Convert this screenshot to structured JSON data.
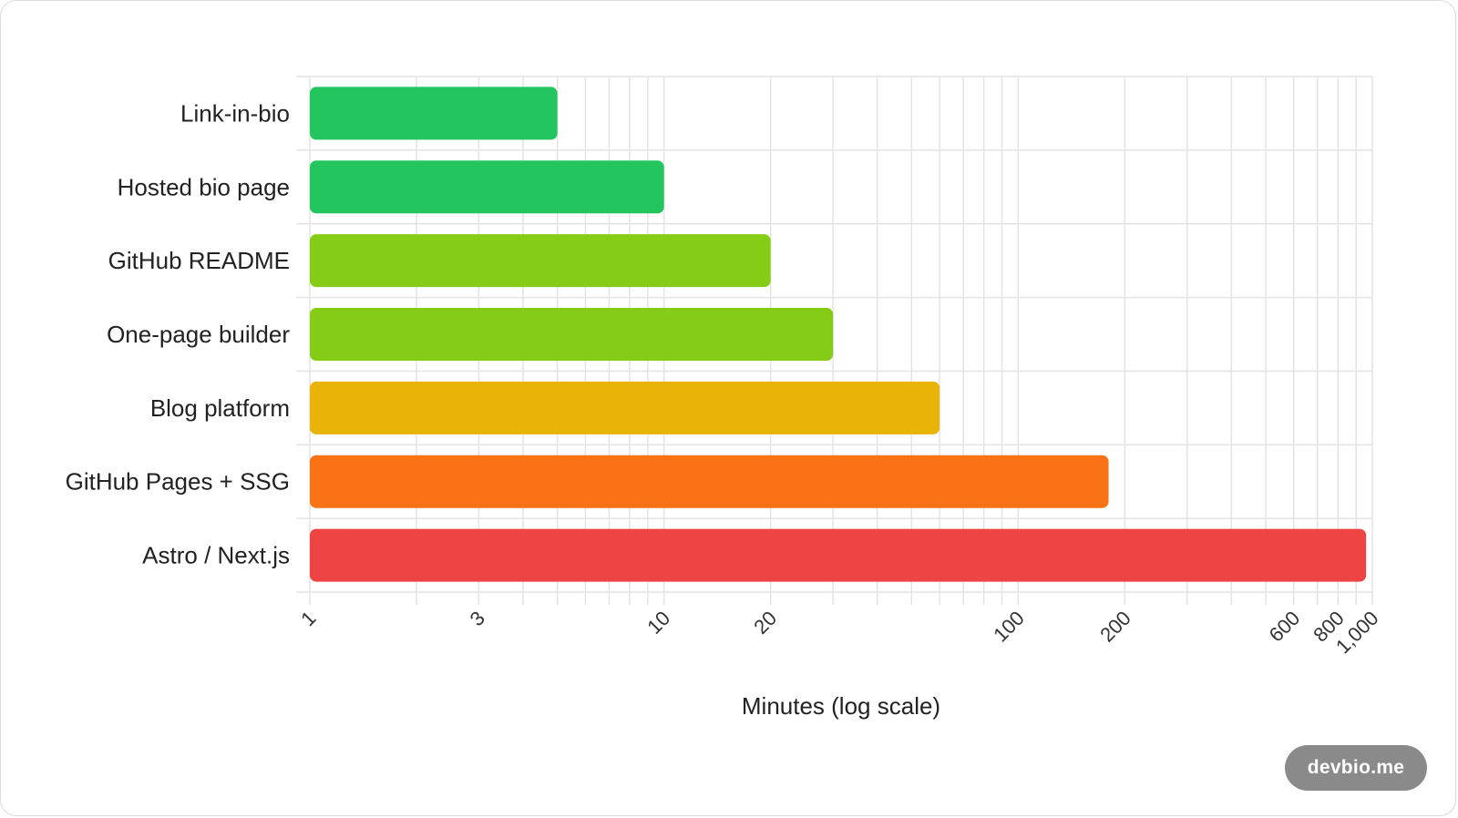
{
  "chart_data": {
    "type": "bar",
    "orientation": "horizontal",
    "categories": [
      "Link-in-bio",
      "Hosted bio page",
      "GitHub README",
      "One-page builder",
      "Blog platform",
      "GitHub Pages + SSG",
      "Astro / Next.js"
    ],
    "values": [
      5,
      10,
      20,
      30,
      60,
      180,
      960
    ],
    "colors": [
      "#22c55e",
      "#22c55e",
      "#84cc16",
      "#84cc16",
      "#eab308",
      "#f97316",
      "#ef4444"
    ],
    "xlabel": "Minutes (log scale)",
    "xscale": "log",
    "xlim": [
      1,
      1000
    ],
    "xticks": [
      1,
      3,
      10,
      20,
      100,
      200,
      600,
      800,
      1000
    ],
    "xtick_labels": [
      "1",
      "3",
      "10",
      "20",
      "100",
      "200",
      "600",
      "800",
      "1,000"
    ],
    "grid": true
  },
  "badge": {
    "label": "devbio.me"
  }
}
